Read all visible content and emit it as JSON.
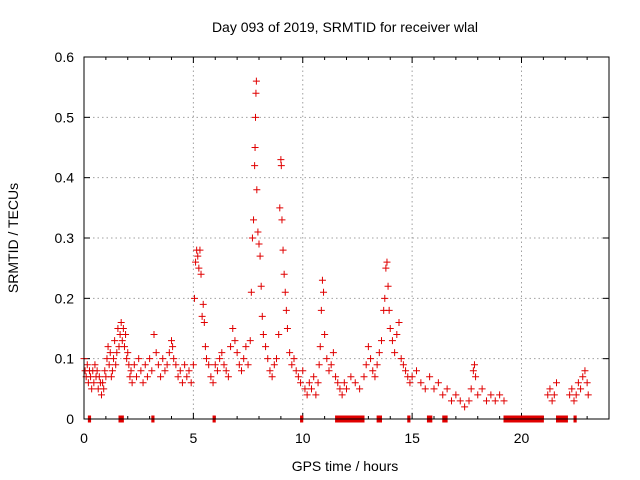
{
  "chart_data": {
    "type": "scatter",
    "title": "Day 093 of 2019, SRMTID for receiver wlal",
    "xlabel": "GPS time / hours",
    "ylabel": "SRMTID / TECUs",
    "xlim": [
      0,
      24
    ],
    "ylim": [
      0,
      0.6
    ],
    "xticks": [
      0,
      5,
      10,
      15,
      20
    ],
    "yticks": [
      0,
      0.1,
      0.2,
      0.3,
      0.4,
      0.5,
      0.6
    ],
    "xtick_labels": [
      "0",
      "5",
      "10",
      "15",
      "20"
    ],
    "ytick_labels": [
      "0",
      "0.1",
      "0.2",
      "0.3",
      "0.4",
      "0.5",
      "0.6"
    ],
    "grid": true,
    "marker": "+",
    "color": "#e00000",
    "series": [
      {
        "name": "SRMTID",
        "points": [
          [
            0.0,
            0.1
          ],
          [
            0.05,
            0.08
          ],
          [
            0.1,
            0.07
          ],
          [
            0.15,
            0.09
          ],
          [
            0.2,
            0.06
          ],
          [
            0.25,
            0.08
          ],
          [
            0.3,
            0.07
          ],
          [
            0.35,
            0.05
          ],
          [
            0.4,
            0.08
          ],
          [
            0.45,
            0.06
          ],
          [
            0.5,
            0.09
          ],
          [
            0.55,
            0.07
          ],
          [
            0.6,
            0.08
          ],
          [
            0.65,
            0.05
          ],
          [
            0.7,
            0.07
          ],
          [
            0.75,
            0.06
          ],
          [
            0.8,
            0.04
          ],
          [
            0.85,
            0.06
          ],
          [
            0.9,
            0.05
          ],
          [
            0.95,
            0.08
          ],
          [
            1.0,
            0.07
          ],
          [
            1.05,
            0.1
          ],
          [
            1.1,
            0.12
          ],
          [
            1.15,
            0.09
          ],
          [
            1.2,
            0.11
          ],
          [
            1.25,
            0.07
          ],
          [
            1.3,
            0.08
          ],
          [
            1.35,
            0.1
          ],
          [
            1.4,
            0.13
          ],
          [
            1.45,
            0.09
          ],
          [
            1.5,
            0.11
          ],
          [
            1.55,
            0.15
          ],
          [
            1.6,
            0.12
          ],
          [
            1.65,
            0.14
          ],
          [
            1.7,
            0.16
          ],
          [
            1.75,
            0.13
          ],
          [
            1.8,
            0.15
          ],
          [
            1.85,
            0.12
          ],
          [
            1.9,
            0.14
          ],
          [
            1.95,
            0.1
          ],
          [
            2.0,
            0.11
          ],
          [
            2.05,
            0.09
          ],
          [
            2.1,
            0.07
          ],
          [
            2.15,
            0.08
          ],
          [
            2.2,
            0.06
          ],
          [
            2.3,
            0.09
          ],
          [
            2.4,
            0.07
          ],
          [
            2.5,
            0.1
          ],
          [
            2.6,
            0.08
          ],
          [
            2.7,
            0.06
          ],
          [
            2.8,
            0.09
          ],
          [
            2.9,
            0.07
          ],
          [
            3.0,
            0.1
          ],
          [
            3.1,
            0.08
          ],
          [
            3.2,
            0.14
          ],
          [
            3.3,
            0.11
          ],
          [
            3.4,
            0.09
          ],
          [
            3.5,
            0.07
          ],
          [
            3.6,
            0.1
          ],
          [
            3.7,
            0.08
          ],
          [
            3.8,
            0.09
          ],
          [
            3.9,
            0.11
          ],
          [
            4.0,
            0.13
          ],
          [
            4.05,
            0.12
          ],
          [
            4.1,
            0.1
          ],
          [
            4.2,
            0.09
          ],
          [
            4.3,
            0.07
          ],
          [
            4.4,
            0.08
          ],
          [
            4.5,
            0.06
          ],
          [
            4.6,
            0.09
          ],
          [
            4.7,
            0.07
          ],
          [
            4.8,
            0.08
          ],
          [
            4.9,
            0.06
          ],
          [
            5.0,
            0.09
          ],
          [
            5.05,
            0.2
          ],
          [
            5.1,
            0.26
          ],
          [
            5.15,
            0.28
          ],
          [
            5.2,
            0.27
          ],
          [
            5.25,
            0.25
          ],
          [
            5.3,
            0.28
          ],
          [
            5.35,
            0.24
          ],
          [
            5.4,
            0.17
          ],
          [
            5.45,
            0.19
          ],
          [
            5.5,
            0.16
          ],
          [
            5.55,
            0.12
          ],
          [
            5.6,
            0.1
          ],
          [
            5.7,
            0.09
          ],
          [
            5.8,
            0.07
          ],
          [
            5.9,
            0.06
          ],
          [
            6.0,
            0.09
          ],
          [
            6.1,
            0.08
          ],
          [
            6.2,
            0.1
          ],
          [
            6.3,
            0.11
          ],
          [
            6.4,
            0.09
          ],
          [
            6.5,
            0.08
          ],
          [
            6.6,
            0.07
          ],
          [
            6.7,
            0.12
          ],
          [
            6.8,
            0.15
          ],
          [
            6.9,
            0.13
          ],
          [
            7.0,
            0.11
          ],
          [
            7.1,
            0.09
          ],
          [
            7.2,
            0.08
          ],
          [
            7.3,
            0.1
          ],
          [
            7.4,
            0.12
          ],
          [
            7.5,
            0.09
          ],
          [
            7.6,
            0.13
          ],
          [
            7.65,
            0.21
          ],
          [
            7.7,
            0.3
          ],
          [
            7.75,
            0.33
          ],
          [
            7.8,
            0.42
          ],
          [
            7.82,
            0.45
          ],
          [
            7.84,
            0.5
          ],
          [
            7.86,
            0.54
          ],
          [
            7.88,
            0.56
          ],
          [
            7.9,
            0.38
          ],
          [
            7.95,
            0.31
          ],
          [
            8.0,
            0.29
          ],
          [
            8.05,
            0.27
          ],
          [
            8.1,
            0.22
          ],
          [
            8.15,
            0.17
          ],
          [
            8.2,
            0.14
          ],
          [
            8.3,
            0.12
          ],
          [
            8.4,
            0.1
          ],
          [
            8.5,
            0.08
          ],
          [
            8.6,
            0.07
          ],
          [
            8.7,
            0.09
          ],
          [
            8.8,
            0.1
          ],
          [
            8.9,
            0.14
          ],
          [
            8.95,
            0.35
          ],
          [
            9.0,
            0.43
          ],
          [
            9.02,
            0.42
          ],
          [
            9.05,
            0.33
          ],
          [
            9.1,
            0.28
          ],
          [
            9.15,
            0.24
          ],
          [
            9.2,
            0.21
          ],
          [
            9.25,
            0.18
          ],
          [
            9.3,
            0.15
          ],
          [
            9.4,
            0.11
          ],
          [
            9.5,
            0.09
          ],
          [
            9.6,
            0.1
          ],
          [
            9.7,
            0.08
          ],
          [
            9.8,
            0.07
          ],
          [
            9.9,
            0.06
          ],
          [
            10.0,
            0.08
          ],
          [
            10.1,
            0.05
          ],
          [
            10.2,
            0.04
          ],
          [
            10.3,
            0.06
          ],
          [
            10.4,
            0.05
          ],
          [
            10.5,
            0.07
          ],
          [
            10.6,
            0.04
          ],
          [
            10.7,
            0.06
          ],
          [
            10.75,
            0.09
          ],
          [
            10.8,
            0.12
          ],
          [
            10.85,
            0.18
          ],
          [
            10.9,
            0.23
          ],
          [
            10.95,
            0.21
          ],
          [
            11.0,
            0.14
          ],
          [
            11.1,
            0.1
          ],
          [
            11.2,
            0.08
          ],
          [
            11.3,
            0.09
          ],
          [
            11.4,
            0.11
          ],
          [
            11.5,
            0.07
          ],
          [
            11.6,
            0.06
          ],
          [
            11.7,
            0.05
          ],
          [
            11.8,
            0.04
          ],
          [
            11.9,
            0.06
          ],
          [
            12.0,
            0.05
          ],
          [
            12.2,
            0.07
          ],
          [
            12.4,
            0.06
          ],
          [
            12.6,
            0.05
          ],
          [
            12.8,
            0.07
          ],
          [
            12.9,
            0.09
          ],
          [
            13.0,
            0.12
          ],
          [
            13.1,
            0.1
          ],
          [
            13.2,
            0.08
          ],
          [
            13.3,
            0.07
          ],
          [
            13.4,
            0.09
          ],
          [
            13.5,
            0.11
          ],
          [
            13.6,
            0.13
          ],
          [
            13.7,
            0.18
          ],
          [
            13.75,
            0.2
          ],
          [
            13.8,
            0.25
          ],
          [
            13.85,
            0.26
          ],
          [
            13.9,
            0.22
          ],
          [
            13.95,
            0.18
          ],
          [
            14.0,
            0.15
          ],
          [
            14.1,
            0.13
          ],
          [
            14.2,
            0.11
          ],
          [
            14.3,
            0.14
          ],
          [
            14.4,
            0.16
          ],
          [
            14.5,
            0.1
          ],
          [
            14.6,
            0.09
          ],
          [
            14.7,
            0.08
          ],
          [
            14.8,
            0.07
          ],
          [
            14.9,
            0.06
          ],
          [
            15.0,
            0.07
          ],
          [
            15.2,
            0.08
          ],
          [
            15.4,
            0.06
          ],
          [
            15.6,
            0.05
          ],
          [
            15.8,
            0.07
          ],
          [
            16.0,
            0.05
          ],
          [
            16.2,
            0.06
          ],
          [
            16.4,
            0.04
          ],
          [
            16.6,
            0.05
          ],
          [
            16.8,
            0.03
          ],
          [
            17.0,
            0.04
          ],
          [
            17.2,
            0.03
          ],
          [
            17.4,
            0.02
          ],
          [
            17.6,
            0.03
          ],
          [
            17.7,
            0.05
          ],
          [
            17.8,
            0.08
          ],
          [
            17.85,
            0.09
          ],
          [
            17.9,
            0.07
          ],
          [
            18.0,
            0.04
          ],
          [
            18.2,
            0.05
          ],
          [
            18.4,
            0.03
          ],
          [
            18.6,
            0.04
          ],
          [
            18.8,
            0.03
          ],
          [
            19.0,
            0.04
          ],
          [
            19.2,
            0.03
          ],
          [
            21.2,
            0.04
          ],
          [
            21.3,
            0.05
          ],
          [
            21.4,
            0.03
          ],
          [
            21.5,
            0.04
          ],
          [
            21.6,
            0.06
          ],
          [
            22.2,
            0.04
          ],
          [
            22.3,
            0.05
          ],
          [
            22.4,
            0.03
          ],
          [
            22.5,
            0.04
          ],
          [
            22.6,
            0.06
          ],
          [
            22.7,
            0.05
          ],
          [
            22.8,
            0.07
          ],
          [
            22.9,
            0.08
          ],
          [
            23.0,
            0.06
          ],
          [
            23.05,
            0.04
          ]
        ]
      }
    ],
    "zero_segments": [
      [
        0.2,
        0.3
      ],
      [
        1.6,
        1.8
      ],
      [
        3.1,
        3.2
      ],
      [
        5.9,
        6.0
      ],
      [
        9.9,
        10.0
      ],
      [
        11.5,
        12.8
      ],
      [
        13.4,
        13.6
      ],
      [
        14.8,
        14.9
      ],
      [
        15.7,
        15.9
      ],
      [
        16.4,
        16.6
      ],
      [
        19.2,
        21.0
      ],
      [
        21.6,
        22.1
      ],
      [
        22.4,
        22.5
      ]
    ]
  }
}
